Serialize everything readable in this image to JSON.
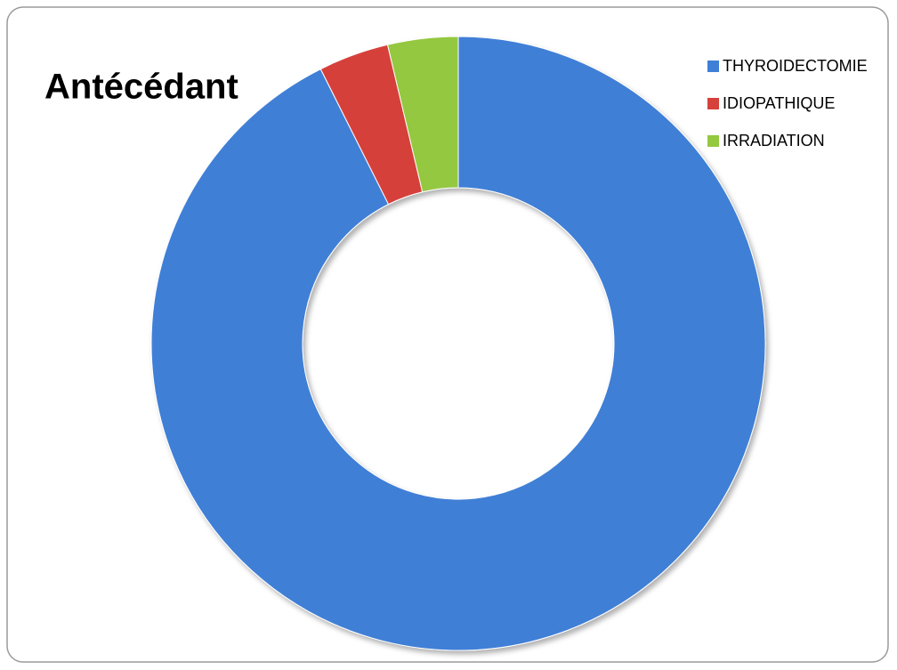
{
  "chart_data": {
    "type": "donut",
    "title": "Antécédant",
    "categories": [
      "THYROIDECTOMIE",
      "IDIOPATHIQUE",
      "IRRADIATION"
    ],
    "values": [
      92.6,
      3.7,
      3.7
    ],
    "colors": [
      "#3f7fd6",
      "#d6413b",
      "#94c83f"
    ],
    "legend": "top-right"
  }
}
